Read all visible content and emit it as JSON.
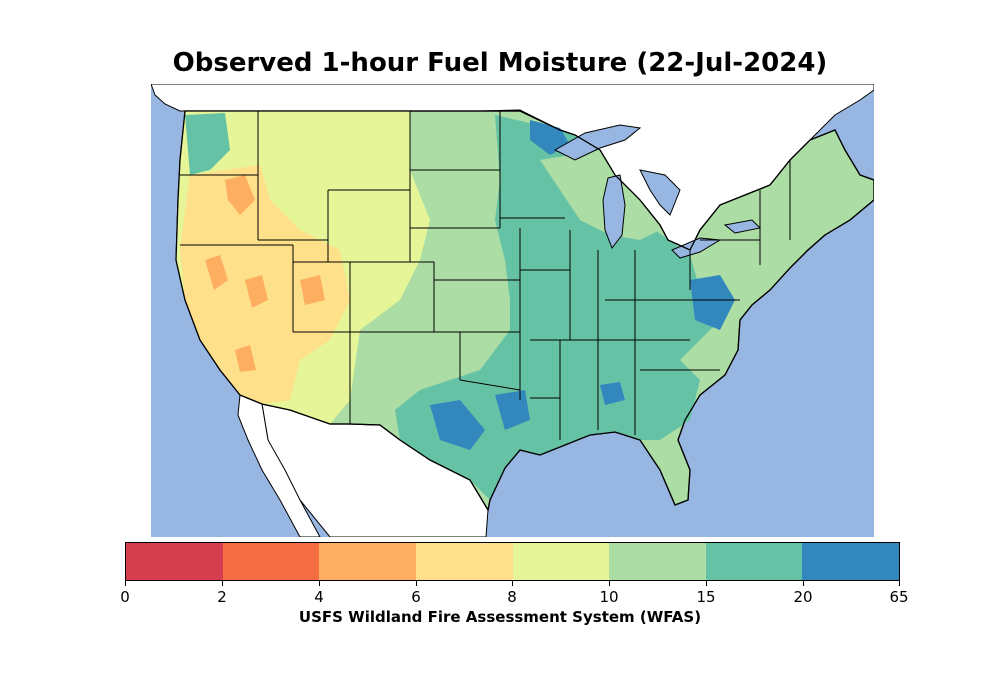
{
  "title": "Observed 1-hour Fuel Moisture (22-Jul-2024)",
  "colorbar": {
    "title": "USFS Wildland Fire Assessment System (WFAS)",
    "ticks": [
      "0",
      "2",
      "4",
      "6",
      "8",
      "10",
      "15",
      "20",
      "65"
    ],
    "bins": [
      {
        "range": "0-2",
        "color": "#d53e4f"
      },
      {
        "range": "2-4",
        "color": "#f46d43"
      },
      {
        "range": "4-6",
        "color": "#fdae61"
      },
      {
        "range": "6-8",
        "color": "#fee08b"
      },
      {
        "range": "8-10",
        "color": "#e6f598"
      },
      {
        "range": "10-15",
        "color": "#abdda4"
      },
      {
        "range": "15-20",
        "color": "#66c2a5"
      },
      {
        "range": "20-65",
        "color": "#3288bd"
      }
    ]
  },
  "colors": {
    "water": "#97b6e1",
    "land_outside": "#ffffff",
    "borders": "#000000"
  }
}
